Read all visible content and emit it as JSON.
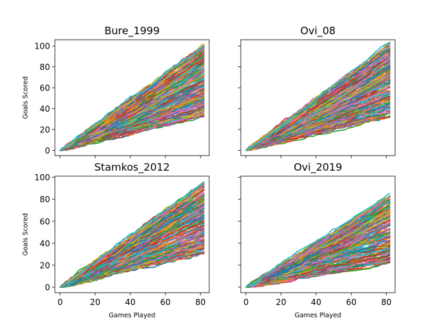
{
  "figure": {
    "colors": [
      "#1f77b4",
      "#ff7f0e",
      "#2ca02c",
      "#d62728",
      "#9467bd",
      "#8c564b",
      "#e377c2",
      "#7f7f7f",
      "#bcbd22",
      "#17becf"
    ]
  },
  "chart_data": [
    {
      "type": "line",
      "title": "Bure_1999",
      "xlabel": "",
      "ylabel": "Goals Scored",
      "xlim": [
        -3,
        85
      ],
      "ylim": [
        -5,
        106
      ],
      "xticks": [
        0,
        20,
        40,
        60,
        80
      ],
      "xticklabels": [
        "",
        "",
        "",
        "",
        ""
      ],
      "yticks": [
        0,
        20,
        40,
        60,
        80,
        100
      ],
      "yticklabels": [
        "0",
        "20",
        "40",
        "60",
        "80",
        "100"
      ],
      "games": 82,
      "final_goals_range": [
        33,
        101
      ],
      "n_series": 160
    },
    {
      "type": "line",
      "title": "Ovi_08",
      "xlabel": "",
      "ylabel": "",
      "xlim": [
        -3,
        85
      ],
      "ylim": [
        -5,
        106
      ],
      "xticks": [
        0,
        20,
        40,
        60,
        80
      ],
      "xticklabels": [
        "",
        "",
        "",
        "",
        ""
      ],
      "yticks": [
        0,
        20,
        40,
        60,
        80,
        100
      ],
      "yticklabels": [
        "",
        "",
        "",
        "",
        "",
        ""
      ],
      "games": 82,
      "final_goals_range": [
        33,
        103
      ],
      "n_series": 160
    },
    {
      "type": "line",
      "title": "Stamkos_2012",
      "xlabel": "Games Played",
      "ylabel": "Goals Scored",
      "xlim": [
        -3,
        85
      ],
      "ylim": [
        -5,
        101
      ],
      "xticks": [
        0,
        20,
        40,
        60,
        80
      ],
      "xticklabels": [
        "0",
        "20",
        "40",
        "60",
        "80"
      ],
      "yticks": [
        0,
        20,
        40,
        60,
        80,
        100
      ],
      "yticklabels": [
        "0",
        "20",
        "40",
        "60",
        "80",
        "100"
      ],
      "games": 82,
      "final_goals_range": [
        31,
        96
      ],
      "n_series": 160
    },
    {
      "type": "line",
      "title": "Ovi_2019",
      "xlabel": "Games Played",
      "ylabel": "",
      "xlim": [
        -3,
        85
      ],
      "ylim": [
        -5,
        101
      ],
      "xticks": [
        0,
        20,
        40,
        60,
        80
      ],
      "xticklabels": [
        "0",
        "20",
        "40",
        "60",
        "80"
      ],
      "yticks": [
        0,
        20,
        40,
        60,
        80,
        100
      ],
      "yticklabels": [
        "",
        "",
        "",
        "",
        "",
        ""
      ],
      "games": 82,
      "final_goals_range": [
        22,
        84
      ],
      "n_series": 160
    }
  ]
}
